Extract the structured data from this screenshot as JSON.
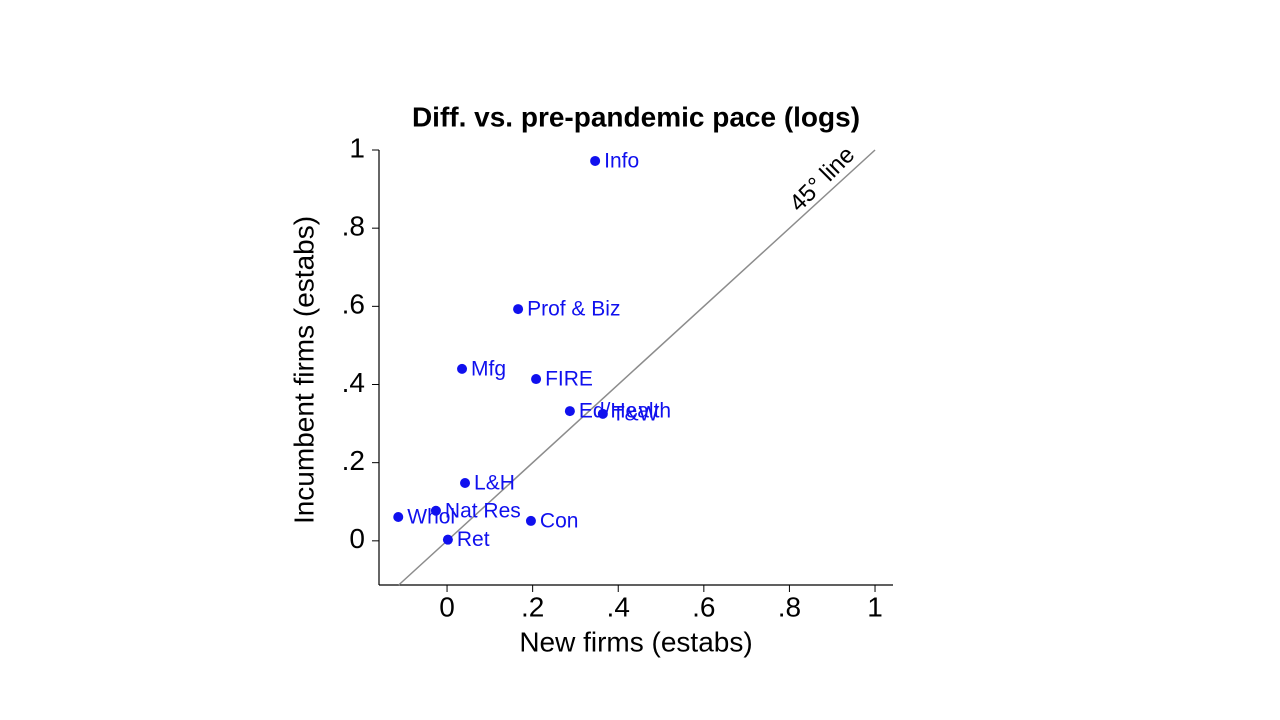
{
  "chart_data": {
    "type": "scatter",
    "title": "Diff. vs. pre-pandemic pace (logs)",
    "x_label": "New firms (estabs)",
    "y_label": "Incumbent firms (estabs)",
    "annotation": "45° line",
    "color": "#1010ee",
    "line_color": "#8c8c8c",
    "labels": [
      "Info",
      "Prof & Biz",
      "Mfg",
      "FIRE",
      "Ed/Health",
      "T&W",
      "L&H",
      "Whol",
      "Nat Res",
      "Con",
      "Ret"
    ],
    "x": [
      0.346,
      0.166,
      0.035,
      0.208,
      0.287,
      0.364,
      0.042,
      -0.114,
      -0.026,
      0.196,
      0.002
    ],
    "values": [
      0.972,
      0.593,
      0.44,
      0.414,
      0.332,
      0.325,
      0.148,
      0.061,
      0.077,
      0.051,
      0.003
    ],
    "xlim": [
      -0.159,
      1.042
    ],
    "ylim": [
      -0.113,
      1.0
    ],
    "xticks": [
      0,
      {
        "value": 0.2,
        "label": ".2"
      },
      {
        "value": 0.4,
        "label": ".4"
      },
      {
        "value": 0.6,
        "label": ".6"
      },
      {
        "value": 0.8,
        "label": ".8"
      },
      1
    ],
    "yticks": [
      0,
      {
        "value": 0.2,
        "label": ".2"
      },
      {
        "value": 0.4,
        "label": ".4"
      },
      {
        "value": 0.6,
        "label": ".6"
      },
      {
        "value": 0.8,
        "label": ".8"
      },
      1
    ]
  }
}
